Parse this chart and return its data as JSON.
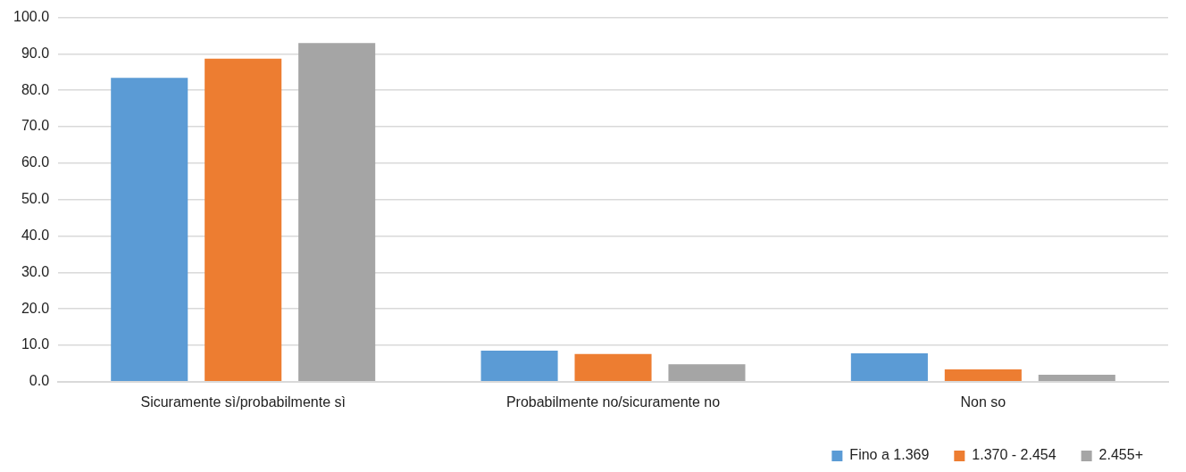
{
  "chart_data": {
    "type": "bar",
    "categories": [
      "Sicuramente sì/probabilmente sì",
      "Probabilmente no/sicuramente no",
      "Non so"
    ],
    "series": [
      {
        "name": "Fino a 1.369",
        "color": "#5b9bd5",
        "values": [
          83.4,
          8.5,
          7.8
        ]
      },
      {
        "name": "1.370 - 2.454",
        "color": "#ed7d31",
        "values": [
          88.7,
          7.6,
          3.4
        ]
      },
      {
        "name": "2.455+",
        "color": "#a5a5a5",
        "values": [
          93.0,
          4.8,
          1.9
        ]
      }
    ],
    "ylim": [
      0,
      100
    ],
    "yticks": [
      {
        "value": 0,
        "label": "0.0"
      },
      {
        "value": 10,
        "label": "10.0"
      },
      {
        "value": 20,
        "label": "20.0"
      },
      {
        "value": 30,
        "label": "30.0"
      },
      {
        "value": 40,
        "label": "40.0"
      },
      {
        "value": 50,
        "label": "50.0"
      },
      {
        "value": 60,
        "label": "60.0"
      },
      {
        "value": 70,
        "label": "70.0"
      },
      {
        "value": 80,
        "label": "80.0"
      },
      {
        "value": 90,
        "label": "90.0"
      },
      {
        "value": 100,
        "label": "100.0"
      }
    ],
    "grid": "y",
    "legend": "bottom right"
  }
}
